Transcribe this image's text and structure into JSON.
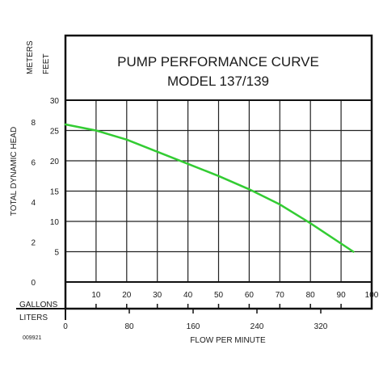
{
  "chart_data": {
    "type": "line",
    "title_lines": [
      "PUMP PERFORMANCE CURVE",
      "MODEL 137/139"
    ],
    "left_units": {
      "outer": "METERS",
      "inner": "FEET"
    },
    "ylabel": "TOTAL DYNAMIC HEAD",
    "xlabel": "FLOW PER MINUTE",
    "gallons_label": "GALLONS",
    "liters_label": "LITERS",
    "figure_code": "009921",
    "feet_ticks": [
      5,
      10,
      15,
      20,
      25,
      30
    ],
    "meters_ticks": [
      0,
      2,
      4,
      6,
      8
    ],
    "gallons_ticks": [
      10,
      20,
      30,
      40,
      50,
      60,
      70,
      80,
      90,
      100
    ],
    "liters_ticks": [
      0,
      80,
      160,
      240,
      320
    ],
    "xlim": [
      0,
      100
    ],
    "ylim_feet": [
      0,
      30
    ],
    "grid": true,
    "line_color": "#33cc33",
    "series": [
      {
        "x": [
          0,
          10,
          20,
          30,
          40,
          50,
          60,
          70,
          80,
          94
        ],
        "y": [
          26,
          25,
          23.5,
          21.5,
          19.5,
          17.5,
          15.3,
          12.8,
          9.7,
          5
        ]
      }
    ]
  }
}
